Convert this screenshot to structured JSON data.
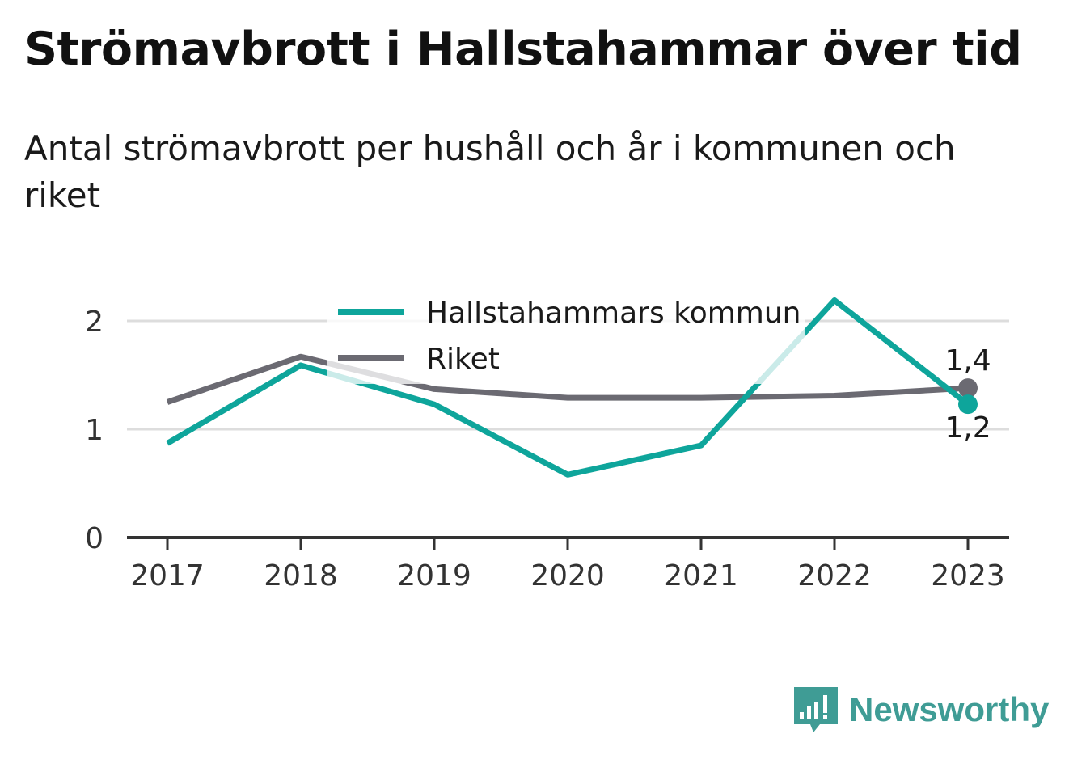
{
  "title": "Strömavbrott i Hallstahammar över tid",
  "subtitle": "Antal strömavbrott per hushåll och år i kommunen och riket",
  "brand": "Newsworthy",
  "colors": {
    "kommun": "#0ea59b",
    "riket": "#6b6a72",
    "grid": "#dddddd",
    "axis": "#333333",
    "brand": "#3f9c95"
  },
  "chart_data": {
    "type": "line",
    "title": "Strömavbrott i Hallstahammar över tid",
    "subtitle": "Antal strömavbrott per hushåll och år i kommunen och riket",
    "xlabel": "",
    "ylabel": "",
    "categories": [
      "2017",
      "2018",
      "2019",
      "2020",
      "2021",
      "2022",
      "2023"
    ],
    "ylim": [
      0,
      2.3
    ],
    "yticks": [
      "0",
      "1",
      "2"
    ],
    "grid": true,
    "legend": "top-center",
    "series": [
      {
        "name": "Hallstahammars kommun",
        "values": [
          0.87,
          1.59,
          1.23,
          0.58,
          0.85,
          2.19,
          1.23
        ]
      },
      {
        "name": "Riket",
        "values": [
          1.25,
          1.67,
          1.37,
          1.29,
          1.29,
          1.31,
          1.38
        ]
      }
    ],
    "end_labels": {
      "Hallstahammars kommun": "1,2",
      "Riket": "1,4"
    }
  }
}
